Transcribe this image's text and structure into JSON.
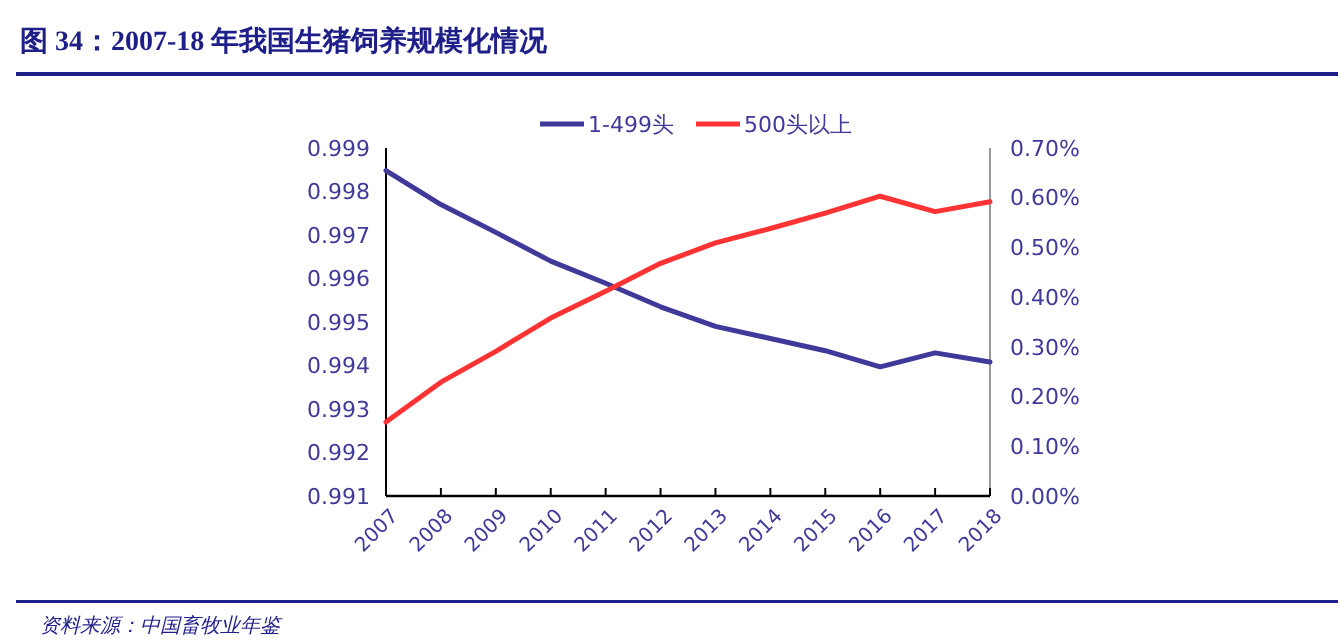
{
  "chart_data": {
    "type": "line",
    "title": "图 34：2007-18 年我国生猪饲养规模化情况",
    "annotations": [
      "资料来源：中国畜牧业年鉴"
    ],
    "categories": [
      "2007",
      "2008",
      "2009",
      "2010",
      "2011",
      "2012",
      "2013",
      "2014",
      "2015",
      "2016",
      "2017",
      "2018"
    ],
    "series": [
      {
        "name": "1-499头",
        "color": "#3f3a9a",
        "values": [
          0.99848,
          0.9977,
          0.99706,
          0.9964,
          0.99589,
          0.99535,
          0.9949,
          0.99462,
          0.99434,
          0.99397,
          0.99429,
          0.99408
        ]
      },
      {
        "name": "500头以上",
        "color": "#ff3333",
        "axis": "y2",
        "values": [
          0.149,
          0.229,
          0.291,
          0.358,
          0.412,
          0.468,
          0.509,
          0.538,
          0.569,
          0.603,
          0.572,
          0.592
        ]
      }
    ],
    "ylim": [
      0.991,
      0.999
    ],
    "yticks": [
      0.991,
      0.992,
      0.993,
      0.994,
      0.995,
      0.996,
      0.997,
      0.998,
      0.999
    ],
    "y2lim": [
      0,
      0.7
    ],
    "y2ticks": [
      {
        "value": 0,
        "label": "0.00%"
      },
      {
        "value": 0.1,
        "label": "0.10%"
      },
      {
        "value": 0.2,
        "label": "0.20%"
      },
      {
        "value": 0.3,
        "label": "0.30%"
      },
      {
        "value": 0.4,
        "label": "0.40%"
      },
      {
        "value": 0.5,
        "label": "0.50%"
      },
      {
        "value": 0.6,
        "label": "0.60%"
      },
      {
        "value": 0.7,
        "label": "0.70%"
      }
    ],
    "legend": "top",
    "grid": false
  }
}
